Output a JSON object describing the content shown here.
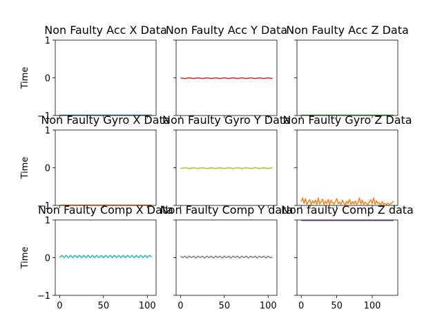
{
  "chart_data": [
    {
      "type": "line",
      "title": "Non Faulty Acc X Data",
      "ylabel": "Time",
      "xlim": [
        -5,
        110
      ],
      "ylim": [
        -1,
        1
      ],
      "xticks": [],
      "yticks": [
        "1",
        "0",
        "−1"
      ],
      "series": [
        {
          "color": "#1f77b4",
          "x": [
            0,
            105
          ],
          "y": [
            -0.99,
            -0.99
          ]
        }
      ]
    },
    {
      "type": "line",
      "title": "Non Faulty Acc Y Data",
      "ylabel": "",
      "xlim": [
        -5,
        110
      ],
      "ylim": [
        -1,
        1
      ],
      "xticks": [],
      "yticks": [],
      "series": [
        {
          "color": "#d62728",
          "x": [
            0,
            5,
            10,
            15,
            20,
            25,
            30,
            35,
            40,
            45,
            50,
            55,
            60,
            65,
            70,
            75,
            80,
            85,
            90,
            95,
            100,
            105
          ],
          "y": [
            0.0,
            -0.02,
            0.0,
            -0.02,
            0.0,
            -0.02,
            0.0,
            -0.02,
            0.0,
            -0.02,
            0.0,
            -0.02,
            0.0,
            -0.02,
            0.0,
            -0.02,
            0.0,
            -0.02,
            0.0,
            -0.02,
            0.0,
            -0.02
          ]
        }
      ]
    },
    {
      "type": "line",
      "title": "Non Faulty Acc Z Data",
      "ylabel": "",
      "xlim": [
        -6,
        136
      ],
      "ylim": [
        -1,
        1
      ],
      "xticks": [],
      "yticks": [],
      "series": [
        {
          "color": "#2ca02c",
          "x": [
            0,
            130
          ],
          "y": [
            -0.99,
            -0.99
          ]
        }
      ]
    },
    {
      "type": "line",
      "title": "Non Faulty Gyro X Data",
      "ylabel": "Time",
      "xlim": [
        -5,
        110
      ],
      "ylim": [
        -1,
        1
      ],
      "xticks": [],
      "yticks": [
        "1",
        "0",
        "−1"
      ],
      "series": [
        {
          "color": "#ff7f0e",
          "x": [
            0,
            105
          ],
          "y": [
            -0.99,
            -0.99
          ]
        }
      ]
    },
    {
      "type": "line",
      "title": "Non Faulty Gyro Y Data",
      "ylabel": "",
      "xlim": [
        -5,
        110
      ],
      "ylim": [
        -1,
        1
      ],
      "xticks": [],
      "yticks": [],
      "series": [
        {
          "color": "#bcbd22",
          "x": [
            0,
            5,
            10,
            15,
            20,
            25,
            30,
            35,
            40,
            45,
            50,
            55,
            60,
            65,
            70,
            75,
            80,
            85,
            90,
            95,
            100,
            105
          ],
          "y": [
            -0.02,
            0.0,
            -0.02,
            0.0,
            -0.02,
            0.0,
            -0.02,
            0.0,
            -0.02,
            0.0,
            -0.02,
            0.0,
            -0.02,
            0.0,
            -0.02,
            0.0,
            -0.02,
            0.0,
            -0.02,
            0.0,
            -0.02,
            0.0
          ]
        }
      ]
    },
    {
      "type": "line",
      "title": "Non Faulty Gyro Z Data",
      "ylabel": "",
      "xlim": [
        -6,
        136
      ],
      "ylim": [
        -1,
        1
      ],
      "xticks": [],
      "yticks": [],
      "series": [
        {
          "color": "#ff7f0e",
          "x": [
            0,
            2,
            4,
            6,
            8,
            10,
            12,
            14,
            16,
            18,
            20,
            22,
            24,
            26,
            28,
            30,
            32,
            34,
            36,
            38,
            40,
            42,
            44,
            46,
            48,
            50,
            52,
            54,
            56,
            58,
            60,
            62,
            64,
            66,
            68,
            70,
            72,
            74,
            76,
            78,
            80,
            82,
            84,
            86,
            88,
            90,
            92,
            94,
            96,
            98,
            100,
            102,
            104,
            106,
            108,
            110,
            112,
            114,
            116,
            118,
            120,
            122,
            124,
            126,
            128,
            130
          ],
          "y": [
            -0.9,
            -0.8,
            -0.95,
            -0.82,
            -0.97,
            -0.9,
            -0.85,
            -0.98,
            -0.88,
            -0.94,
            -0.86,
            -0.97,
            -0.8,
            -0.96,
            -0.9,
            -0.83,
            -0.97,
            -0.89,
            -0.95,
            -0.84,
            -0.98,
            -0.86,
            -0.93,
            -0.97,
            -0.9,
            -0.82,
            -0.96,
            -0.91,
            -0.97,
            -0.86,
            -0.94,
            -0.98,
            -0.89,
            -0.95,
            -0.84,
            -0.97,
            -0.9,
            -0.96,
            -0.88,
            -0.97,
            -0.92,
            -0.8,
            -0.96,
            -0.86,
            -0.97,
            -0.91,
            -0.95,
            -0.98,
            -0.9,
            -0.85,
            -0.96,
            -0.8,
            -0.97,
            -0.88,
            -0.95,
            -0.93,
            -0.98,
            -0.9,
            -0.97,
            -0.95,
            -0.98,
            -0.94,
            -0.97,
            -0.96,
            -0.93,
            -0.88
          ]
        }
      ]
    },
    {
      "type": "line",
      "title": "Non Faulty Comp X Data",
      "ylabel": "Time",
      "xlim": [
        -5,
        110
      ],
      "ylim": [
        -1,
        1
      ],
      "xticks": [
        "0",
        "50",
        "100"
      ],
      "xtick_values": [
        0,
        50,
        100
      ],
      "yticks": [
        "1",
        "0",
        "−1"
      ],
      "series": [
        {
          "color": "#17becf",
          "x": [
            0,
            2.5,
            5,
            7.5,
            10,
            12.5,
            15,
            17.5,
            20,
            22.5,
            25,
            27.5,
            30,
            32.5,
            35,
            37.5,
            40,
            42.5,
            45,
            47.5,
            50,
            52.5,
            55,
            57.5,
            60,
            62.5,
            65,
            67.5,
            70,
            72.5,
            75,
            77.5,
            80,
            82.5,
            85,
            87.5,
            90,
            92.5,
            95,
            97.5,
            100,
            102.5,
            105
          ],
          "y": [
            0.0,
            0.06,
            0.0,
            0.06,
            0.0,
            0.06,
            0.0,
            0.06,
            0.0,
            0.06,
            0.0,
            0.06,
            0.0,
            0.06,
            0.0,
            0.06,
            0.0,
            0.06,
            0.0,
            0.06,
            0.0,
            0.06,
            0.0,
            0.06,
            0.0,
            0.06,
            0.0,
            0.06,
            0.0,
            0.06,
            0.0,
            0.06,
            0.0,
            0.06,
            0.0,
            0.06,
            0.0,
            0.06,
            0.0,
            0.06,
            0.0,
            0.06,
            0.02
          ]
        }
      ]
    },
    {
      "type": "line",
      "title": "Non Faulty Comp Y data",
      "ylabel": "",
      "xlim": [
        -5,
        110
      ],
      "ylim": [
        -1,
        1
      ],
      "xticks": [
        "0",
        "50",
        "100"
      ],
      "xtick_values": [
        0,
        50,
        100
      ],
      "yticks": [],
      "series": [
        {
          "color": "#7f7f7f",
          "x": [
            0,
            2.5,
            5,
            7.5,
            10,
            12.5,
            15,
            17.5,
            20,
            22.5,
            25,
            27.5,
            30,
            32.5,
            35,
            37.5,
            40,
            42.5,
            45,
            47.5,
            50,
            52.5,
            55,
            57.5,
            60,
            62.5,
            65,
            67.5,
            70,
            72.5,
            75,
            77.5,
            80,
            82.5,
            85,
            87.5,
            90,
            92.5,
            95,
            97.5,
            100,
            102.5,
            105
          ],
          "y": [
            0.04,
            0.0,
            0.04,
            -0.01,
            0.04,
            0.0,
            0.04,
            -0.01,
            0.04,
            0.0,
            0.04,
            -0.01,
            0.04,
            0.0,
            0.04,
            -0.01,
            0.04,
            0.0,
            0.04,
            -0.01,
            0.04,
            0.0,
            0.04,
            -0.01,
            0.04,
            0.0,
            0.04,
            -0.01,
            0.04,
            0.0,
            0.04,
            -0.01,
            0.04,
            0.0,
            0.04,
            -0.01,
            0.04,
            0.0,
            0.04,
            -0.01,
            0.04,
            0.0,
            0.01
          ]
        }
      ]
    },
    {
      "type": "line",
      "title": "Non faulty Comp Z data",
      "ylabel": "",
      "xlim": [
        -6,
        136
      ],
      "ylim": [
        -1,
        1
      ],
      "xticks": [
        "0",
        "50",
        "100"
      ],
      "xtick_values": [
        0,
        50,
        100
      ],
      "yticks": [],
      "series": [
        {
          "color": "#7f5fa8",
          "x": [
            0,
            130
          ],
          "y": [
            0.985,
            0.985
          ]
        }
      ]
    }
  ]
}
